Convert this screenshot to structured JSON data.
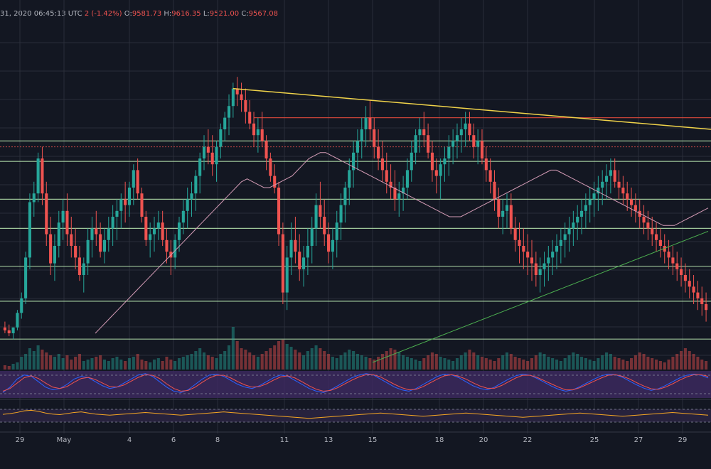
{
  "header": {
    "date_text": "31, 2020 06:45:13 UTC",
    "change_prefix": "2",
    "change": "(-1.42%)",
    "o_label": "O:",
    "o_value": "9581.73",
    "h_label": "H:",
    "h_value": "9616.35",
    "l_label": "L:",
    "l_value": "9521.00",
    "c_label": "C:",
    "c_value": "9567.08"
  },
  "colors": {
    "background": "#131722",
    "grid": "#2a2e39",
    "up": "#26a69a",
    "down": "#ef5350",
    "trendline": "#f0d34a",
    "resistance": "#e74c3c",
    "support": "#b8e6b0",
    "ma_pink": "#d39bb5",
    "ma_green": "#4caf50",
    "stoch_band": "#3e2a63",
    "stoch_k": "#2962ff",
    "stoch_d": "#ef5350",
    "rsi_band": "#2a2340",
    "rsi_line": "#f5a623"
  },
  "chart_data": {
    "type": "candlestick",
    "x_tick_labels": [
      "29",
      "May",
      "4",
      "6",
      "8",
      "11",
      "13",
      "15",
      "18",
      "20",
      "22",
      "25",
      "27",
      "29"
    ],
    "price_range": [
      0,
      100
    ],
    "horizontal_levels": [
      {
        "kind": "resistance",
        "value": 84,
        "start_candle": 60
      },
      {
        "kind": "support",
        "value": 76
      },
      {
        "kind": "support",
        "value": 69
      },
      {
        "kind": "support",
        "value": 56
      },
      {
        "kind": "support",
        "value": 46
      },
      {
        "kind": "support",
        "value": 33
      },
      {
        "kind": "support",
        "value": 21
      },
      {
        "kind": "support",
        "value": 8
      }
    ],
    "candles_ohlc": [
      [
        12,
        14,
        10,
        11
      ],
      [
        11,
        13,
        9,
        10
      ],
      [
        10,
        12,
        8,
        12
      ],
      [
        12,
        18,
        11,
        17
      ],
      [
        17,
        24,
        15,
        22
      ],
      [
        22,
        38,
        20,
        36
      ],
      [
        36,
        58,
        32,
        55
      ],
      [
        55,
        62,
        50,
        58
      ],
      [
        58,
        72,
        55,
        70
      ],
      [
        70,
        74,
        54,
        58
      ],
      [
        58,
        62,
        40,
        44
      ],
      [
        44,
        50,
        30,
        34
      ],
      [
        34,
        44,
        28,
        40
      ],
      [
        40,
        52,
        36,
        48
      ],
      [
        48,
        56,
        42,
        52
      ],
      [
        52,
        58,
        40,
        44
      ],
      [
        44,
        50,
        36,
        40
      ],
      [
        40,
        46,
        32,
        36
      ],
      [
        36,
        40,
        28,
        30
      ],
      [
        30,
        36,
        24,
        34
      ],
      [
        34,
        46,
        30,
        42
      ],
      [
        42,
        50,
        36,
        46
      ],
      [
        46,
        52,
        40,
        44
      ],
      [
        44,
        48,
        36,
        38
      ],
      [
        38,
        46,
        34,
        42
      ],
      [
        42,
        50,
        38,
        46
      ],
      [
        46,
        54,
        40,
        50
      ],
      [
        50,
        56,
        42,
        52
      ],
      [
        52,
        58,
        46,
        56
      ],
      [
        56,
        62,
        48,
        54
      ],
      [
        54,
        62,
        50,
        60
      ],
      [
        60,
        68,
        54,
        66
      ],
      [
        66,
        70,
        56,
        58
      ],
      [
        58,
        60,
        48,
        50
      ],
      [
        50,
        52,
        40,
        42
      ],
      [
        42,
        48,
        36,
        44
      ],
      [
        44,
        50,
        38,
        46
      ],
      [
        46,
        52,
        42,
        48
      ],
      [
        48,
        52,
        40,
        42
      ],
      [
        42,
        46,
        34,
        38
      ],
      [
        38,
        42,
        30,
        36
      ],
      [
        36,
        44,
        32,
        42
      ],
      [
        42,
        50,
        38,
        48
      ],
      [
        48,
        56,
        44,
        52
      ],
      [
        52,
        60,
        46,
        56
      ],
      [
        56,
        62,
        50,
        58
      ],
      [
        58,
        66,
        52,
        64
      ],
      [
        64,
        72,
        58,
        70
      ],
      [
        70,
        78,
        66,
        74
      ],
      [
        74,
        80,
        68,
        72
      ],
      [
        72,
        78,
        64,
        68
      ],
      [
        68,
        76,
        62,
        74
      ],
      [
        74,
        82,
        70,
        80
      ],
      [
        80,
        86,
        76,
        84
      ],
      [
        84,
        92,
        78,
        88
      ],
      [
        88,
        96,
        84,
        94
      ],
      [
        94,
        98,
        88,
        92
      ],
      [
        92,
        96,
        86,
        90
      ],
      [
        90,
        94,
        82,
        86
      ],
      [
        86,
        90,
        80,
        82
      ],
      [
        82,
        86,
        74,
        78
      ],
      [
        78,
        84,
        72,
        80
      ],
      [
        80,
        86,
        74,
        76
      ],
      [
        76,
        78,
        66,
        70
      ],
      [
        70,
        72,
        62,
        64
      ],
      [
        64,
        68,
        58,
        60
      ],
      [
        60,
        62,
        40,
        44
      ],
      [
        44,
        48,
        20,
        24
      ],
      [
        24,
        40,
        18,
        36
      ],
      [
        36,
        48,
        30,
        42
      ],
      [
        42,
        50,
        34,
        38
      ],
      [
        38,
        44,
        28,
        32
      ],
      [
        32,
        40,
        26,
        36
      ],
      [
        36,
        46,
        30,
        40
      ],
      [
        40,
        50,
        34,
        46
      ],
      [
        46,
        58,
        40,
        54
      ],
      [
        54,
        62,
        46,
        50
      ],
      [
        50,
        56,
        40,
        44
      ],
      [
        44,
        48,
        34,
        38
      ],
      [
        38,
        46,
        32,
        42
      ],
      [
        42,
        52,
        36,
        48
      ],
      [
        48,
        58,
        42,
        54
      ],
      [
        54,
        62,
        48,
        60
      ],
      [
        60,
        70,
        54,
        66
      ],
      [
        66,
        76,
        60,
        72
      ],
      [
        72,
        80,
        66,
        76
      ],
      [
        76,
        84,
        70,
        80
      ],
      [
        80,
        88,
        74,
        84
      ],
      [
        84,
        90,
        76,
        80
      ],
      [
        80,
        84,
        70,
        74
      ],
      [
        74,
        80,
        66,
        70
      ],
      [
        70,
        76,
        62,
        66
      ],
      [
        66,
        72,
        58,
        62
      ],
      [
        62,
        68,
        56,
        60
      ],
      [
        60,
        66,
        52,
        56
      ],
      [
        56,
        62,
        50,
        58
      ],
      [
        58,
        64,
        52,
        60
      ],
      [
        60,
        70,
        56,
        66
      ],
      [
        66,
        76,
        62,
        72
      ],
      [
        72,
        80,
        68,
        78
      ],
      [
        78,
        84,
        72,
        80
      ],
      [
        80,
        86,
        74,
        78
      ],
      [
        78,
        82,
        70,
        72
      ],
      [
        72,
        76,
        62,
        66
      ],
      [
        66,
        70,
        58,
        64
      ],
      [
        64,
        70,
        56,
        68
      ],
      [
        68,
        74,
        62,
        70
      ],
      [
        70,
        78,
        64,
        74
      ],
      [
        74,
        80,
        68,
        76
      ],
      [
        76,
        82,
        70,
        78
      ],
      [
        78,
        84,
        72,
        80
      ],
      [
        80,
        86,
        74,
        82
      ],
      [
        82,
        86,
        76,
        78
      ],
      [
        78,
        82,
        70,
        74
      ],
      [
        74,
        80,
        68,
        76
      ],
      [
        76,
        80,
        68,
        70
      ],
      [
        70,
        74,
        62,
        66
      ],
      [
        66,
        70,
        58,
        62
      ],
      [
        62,
        66,
        52,
        56
      ],
      [
        56,
        60,
        46,
        50
      ],
      [
        50,
        56,
        44,
        52
      ],
      [
        52,
        58,
        46,
        54
      ],
      [
        54,
        58,
        44,
        46
      ],
      [
        46,
        50,
        38,
        42
      ],
      [
        42,
        48,
        34,
        40
      ],
      [
        40,
        46,
        32,
        38
      ],
      [
        38,
        44,
        30,
        36
      ],
      [
        36,
        42,
        28,
        34
      ],
      [
        34,
        38,
        26,
        30
      ],
      [
        30,
        36,
        24,
        32
      ],
      [
        32,
        38,
        26,
        34
      ],
      [
        34,
        40,
        28,
        36
      ],
      [
        36,
        42,
        30,
        38
      ],
      [
        38,
        44,
        32,
        40
      ],
      [
        40,
        46,
        34,
        42
      ],
      [
        42,
        48,
        36,
        44
      ],
      [
        44,
        50,
        38,
        46
      ],
      [
        46,
        52,
        40,
        48
      ],
      [
        48,
        54,
        42,
        50
      ],
      [
        50,
        56,
        44,
        52
      ],
      [
        52,
        58,
        46,
        54
      ],
      [
        54,
        60,
        48,
        56
      ],
      [
        56,
        62,
        50,
        58
      ],
      [
        58,
        64,
        52,
        60
      ],
      [
        60,
        66,
        54,
        62
      ],
      [
        62,
        68,
        56,
        64
      ],
      [
        64,
        70,
        58,
        66
      ],
      [
        66,
        70,
        60,
        62
      ],
      [
        62,
        66,
        56,
        60
      ],
      [
        60,
        64,
        54,
        58
      ],
      [
        58,
        62,
        52,
        56
      ],
      [
        56,
        60,
        50,
        54
      ],
      [
        54,
        58,
        48,
        52
      ],
      [
        52,
        56,
        46,
        50
      ],
      [
        50,
        54,
        44,
        48
      ],
      [
        48,
        52,
        42,
        46
      ],
      [
        46,
        50,
        40,
        44
      ],
      [
        44,
        48,
        38,
        42
      ],
      [
        42,
        46,
        36,
        40
      ],
      [
        40,
        44,
        34,
        38
      ],
      [
        38,
        42,
        32,
        36
      ],
      [
        36,
        40,
        30,
        34
      ],
      [
        34,
        38,
        28,
        32
      ],
      [
        32,
        36,
        26,
        30
      ],
      [
        30,
        34,
        24,
        28
      ],
      [
        28,
        32,
        22,
        26
      ],
      [
        26,
        30,
        20,
        24
      ],
      [
        24,
        28,
        18,
        22
      ],
      [
        22,
        26,
        16,
        20
      ],
      [
        20,
        24,
        14,
        18
      ]
    ],
    "volume": [
      6,
      5,
      8,
      10,
      18,
      22,
      30,
      26,
      34,
      28,
      24,
      20,
      18,
      22,
      16,
      20,
      14,
      18,
      22,
      12,
      14,
      16,
      18,
      20,
      14,
      12,
      16,
      18,
      14,
      12,
      16,
      18,
      22,
      14,
      12,
      10,
      14,
      16,
      12,
      18,
      14,
      12,
      16,
      18,
      20,
      22,
      26,
      30,
      24,
      20,
      18,
      16,
      22,
      26,
      34,
      60,
      40,
      30,
      28,
      24,
      20,
      18,
      22,
      26,
      30,
      34,
      40,
      42,
      36,
      32,
      28,
      24,
      20,
      26,
      30,
      34,
      30,
      26,
      22,
      18,
      16,
      20,
      24,
      28,
      26,
      22,
      20,
      18,
      16,
      14,
      18,
      22,
      26,
      30,
      28,
      24,
      20,
      18,
      16,
      14,
      12,
      16,
      20,
      24,
      22,
      18,
      16,
      14,
      12,
      16,
      20,
      24,
      28,
      24,
      20,
      18,
      16,
      14,
      12,
      16,
      20,
      24,
      22,
      18,
      16,
      14,
      12,
      16,
      20,
      24,
      22,
      18,
      16,
      14,
      12,
      16,
      20,
      24,
      22,
      18,
      16,
      14,
      12,
      16,
      20,
      24,
      22,
      18,
      16,
      14,
      12,
      16,
      20,
      24,
      22,
      18,
      16,
      14,
      12,
      10,
      14,
      18,
      22,
      26,
      30,
      26,
      22,
      18,
      14,
      12
    ],
    "ma_pink": [
      10,
      12,
      14,
      16,
      18,
      20,
      22,
      24,
      26,
      28,
      30,
      32,
      34,
      36,
      38,
      40,
      42,
      44,
      46,
      48,
      50,
      52,
      54,
      56,
      58,
      60,
      62,
      63,
      62,
      61,
      60,
      60,
      61,
      62,
      63,
      64,
      66,
      68,
      70,
      71,
      72,
      72,
      71,
      70,
      69,
      68,
      67,
      66,
      65,
      64,
      63,
      62,
      61,
      60,
      59,
      58,
      57,
      56,
      55,
      54,
      53,
      52,
      51,
      50,
      50,
      50,
      51,
      52,
      53,
      54,
      55,
      56,
      57,
      58,
      59,
      60,
      61,
      62,
      63,
      64,
      65,
      66,
      66,
      65,
      64,
      63,
      62,
      61,
      60,
      59,
      58,
      57,
      56,
      55,
      54,
      53,
      52,
      51,
      50,
      49,
      48,
      47,
      47,
      47,
      48,
      49,
      50,
      51,
      52,
      53
    ],
    "ma_green": [
      0,
      0.6,
      1.2,
      1.8,
      2.4,
      3,
      3.6,
      4.2,
      4.8,
      5.4,
      6,
      6.6,
      7.2,
      7.8,
      8.4,
      9,
      9.6,
      10.2,
      10.8,
      11.4,
      12,
      12.6,
      13.2,
      13.8,
      14.4,
      15,
      15.6,
      16.2,
      16.8,
      17.4,
      18,
      18.6,
      19.2,
      19.8,
      20.4,
      21,
      21.6,
      22.2,
      22.8,
      23.4,
      24,
      24.6,
      25.2,
      25.8,
      26.4,
      27,
      27.6,
      28.2,
      28.8,
      29.4,
      30,
      30.6,
      31.2,
      31.8,
      32.4,
      33,
      33.6,
      34.2,
      34.8,
      35.4,
      36,
      36.6,
      37.2,
      37.8,
      38.4,
      39,
      39.6,
      40.2,
      40.8,
      41.4,
      42,
      42.6,
      43.2,
      43.8,
      44.4,
      45
    ],
    "stoch_k": [
      20,
      40,
      70,
      85,
      80,
      60,
      40,
      30,
      35,
      50,
      70,
      80,
      75,
      60,
      45,
      35,
      40,
      55,
      70,
      85,
      90,
      80,
      60,
      40,
      25,
      20,
      30,
      50,
      70,
      85,
      88,
      80,
      65,
      50,
      40,
      35,
      45,
      60,
      75,
      85,
      80,
      65,
      50,
      35,
      25,
      20,
      30,
      45,
      60,
      75,
      85,
      90,
      85,
      70,
      55,
      40,
      30,
      25,
      35,
      50,
      65,
      80,
      88,
      85,
      75,
      60,
      45,
      35,
      30,
      40,
      55,
      70,
      82,
      88,
      84,
      72,
      58,
      44,
      32,
      25,
      30,
      42,
      56,
      70,
      82,
      88,
      86,
      76,
      62,
      48,
      36,
      28,
      34,
      46,
      60,
      74,
      84,
      88,
      84,
      74
    ],
    "stoch_d": [
      25,
      35,
      55,
      75,
      82,
      72,
      55,
      40,
      35,
      42,
      58,
      72,
      76,
      68,
      55,
      42,
      40,
      48,
      62,
      76,
      86,
      84,
      72,
      52,
      35,
      25,
      28,
      40,
      58,
      74,
      84,
      84,
      74,
      60,
      48,
      40,
      42,
      52,
      66,
      78,
      82,
      74,
      60,
      45,
      32,
      25,
      28,
      38,
      52,
      66,
      78,
      86,
      86,
      78,
      64,
      50,
      38,
      30,
      32,
      42,
      56,
      70,
      82,
      86,
      80,
      70,
      56,
      44,
      36,
      36,
      46,
      60,
      74,
      84,
      84,
      76,
      64,
      52,
      40,
      30,
      30,
      38,
      50,
      62,
      74,
      84,
      86,
      80,
      70,
      56,
      44,
      34,
      32,
      40,
      52,
      66,
      78,
      86,
      86,
      80
    ],
    "rsi": [
      55,
      58,
      62,
      68,
      70,
      66,
      60,
      56,
      54,
      58,
      62,
      64,
      60,
      56,
      54,
      52,
      54,
      56,
      58,
      60,
      62,
      60,
      58,
      56,
      54,
      52,
      54,
      56,
      58,
      60,
      62,
      64,
      62,
      60,
      58,
      56,
      54,
      52,
      50,
      48,
      46,
      44,
      42,
      40,
      42,
      44,
      46,
      48,
      50,
      52,
      54,
      56,
      58,
      60,
      58,
      56,
      54,
      52,
      50,
      48,
      50,
      52,
      54,
      56,
      58,
      60,
      58,
      56,
      54,
      52,
      50,
      48,
      46,
      44,
      46,
      48,
      50,
      52,
      54,
      56,
      58,
      60,
      58,
      56,
      54,
      52,
      50,
      48,
      50,
      52,
      54,
      56,
      58,
      60,
      62,
      60,
      58,
      56,
      54,
      52
    ]
  }
}
